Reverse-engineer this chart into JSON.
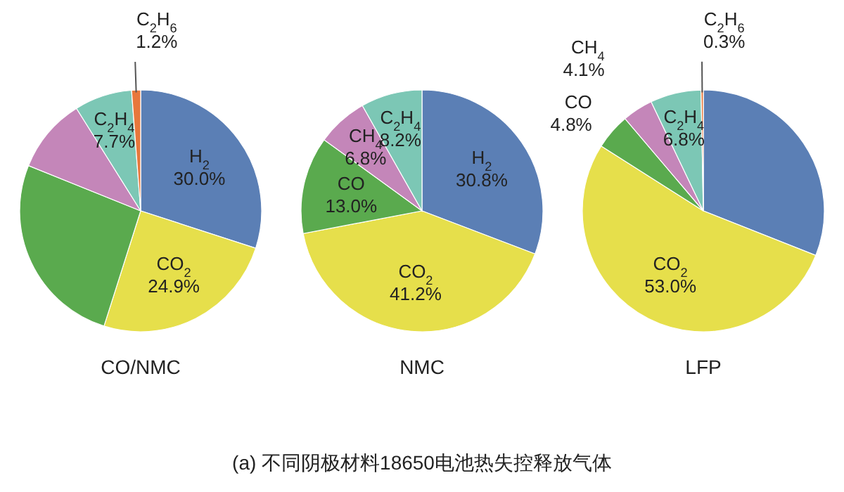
{
  "chart_data": [
    {
      "type": "pie",
      "xlabel": "CO/NMC",
      "categories": [
        "H$_{2}$",
        "CO$_{2}$",
        null,
        null,
        "C$_{2}$H$_{4}$",
        "C$_{2}$H$_{6}$"
      ],
      "values": [
        30.0,
        24.9,
        26.2,
        10.0,
        7.7,
        1.2
      ],
      "value_labels": [
        "30.0%",
        "24.9%",
        null,
        null,
        "7.7%",
        "1.2%"
      ],
      "colors": [
        "#5b7fb5",
        "#e6df4b",
        "#5aaa4e",
        "#c486b9",
        "#7cc7b5",
        "#e8783c"
      ]
    },
    {
      "type": "pie",
      "xlabel": "NMC",
      "categories": [
        "H$_{2}$",
        "CO$_{2}$",
        "CO",
        "CH$_{4}$",
        "C$_{2}$H$_{4}$"
      ],
      "values": [
        30.8,
        41.2,
        13.0,
        6.8,
        8.2
      ],
      "value_labels": [
        "30.8%",
        "41.2%",
        "13.0%",
        "6.8%",
        "8.2%"
      ],
      "colors": [
        "#5b7fb5",
        "#e6df4b",
        "#5aaa4e",
        "#c486b9",
        "#7cc7b5"
      ],
      "annotations": [
        "(a) 不同阴极材料18650电池热失控释放气体"
      ]
    },
    {
      "type": "pie",
      "xlabel": "LFP",
      "categories": [
        null,
        "CO$_{2}$",
        "CO",
        "CH$_{4}$",
        "C$_{2}$H$_{4}$",
        "C$_{2}$H$_{6}$"
      ],
      "values": [
        31.0,
        53.0,
        4.8,
        4.1,
        6.8,
        0.3
      ],
      "value_labels": [
        null,
        "53.0%",
        "4.8%",
        "4.1%",
        "6.8%",
        "0.3%"
      ],
      "colors": [
        "#5b7fb5",
        "#e6df4b",
        "#5aaa4e",
        "#c486b9",
        "#7cc7b5",
        "#e8783c"
      ]
    }
  ]
}
